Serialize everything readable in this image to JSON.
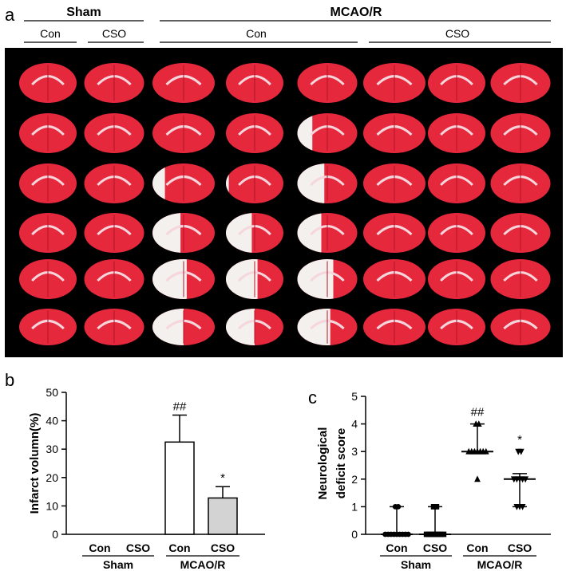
{
  "panel_labels": {
    "a": "a",
    "b": "b",
    "c": "c"
  },
  "top_header": {
    "group1": "Sham",
    "group2": "MCAO/R",
    "subgroups": [
      "Con",
      "CSO",
      "Con",
      "CSO"
    ]
  },
  "photo": {
    "rows": 6,
    "columns": 8,
    "background_color": "#000000",
    "tissue_red": "#e6283c",
    "tissue_white": "#f4f0ee",
    "infarct_extent": [
      [
        0.0,
        0.0,
        0.0,
        0.0,
        0.0,
        0.0,
        0.0,
        0.0
      ],
      [
        0.0,
        0.0,
        0.0,
        0.0,
        0.25,
        0.0,
        0.0,
        0.0
      ],
      [
        0.0,
        0.0,
        0.2,
        0.05,
        0.45,
        0.0,
        0.0,
        0.0
      ],
      [
        0.0,
        0.0,
        0.45,
        0.45,
        0.4,
        0.0,
        0.0,
        0.0
      ],
      [
        0.0,
        0.0,
        0.55,
        0.55,
        0.6,
        0.0,
        0.0,
        0.0
      ],
      [
        0.0,
        0.0,
        0.5,
        0.5,
        0.55,
        0.0,
        0.0,
        0.0
      ]
    ]
  },
  "chart_data": [
    {
      "type": "bar",
      "panel": "b",
      "ylabel": "Infarct volumn(%)",
      "ylim": [
        0,
        50
      ],
      "yticks": [
        0,
        10,
        20,
        30,
        40,
        50
      ],
      "categories": [
        "Con",
        "CSO",
        "Con",
        "CSO"
      ],
      "groups": [
        "Sham",
        "MCAO/R"
      ],
      "values": [
        0,
        0,
        32.5,
        12.8
      ],
      "errors": [
        0,
        0,
        9.5,
        4.0
      ],
      "bar_fill": [
        "#ffffff",
        "#ffffff",
        "#ffffff",
        "#d3d3d3"
      ],
      "annotations": [
        "",
        "",
        "##",
        "*"
      ]
    },
    {
      "type": "scatter",
      "panel": "c",
      "ylabel": "Neurological deficit score",
      "ylim": [
        0,
        5
      ],
      "yticks": [
        0,
        1,
        2,
        3,
        4,
        5
      ],
      "categories": [
        "Con",
        "CSO",
        "Con",
        "CSO"
      ],
      "groups": [
        "Sham",
        "MCAO/R"
      ],
      "markers": [
        "circle",
        "square",
        "triangle-up",
        "triangle-down"
      ],
      "points": [
        [
          0,
          0,
          0,
          0,
          0,
          0,
          0,
          0,
          0,
          1,
          1
        ],
        [
          0,
          0,
          0,
          0,
          0,
          0,
          0,
          1,
          1
        ],
        [
          2,
          3,
          3,
          3,
          3,
          3,
          3,
          3,
          4,
          4
        ],
        [
          1,
          1,
          1,
          2,
          2,
          2,
          2,
          2,
          3,
          3
        ]
      ],
      "median": [
        0,
        0,
        3,
        2
      ],
      "range": [
        [
          0,
          1
        ],
        [
          0,
          1
        ],
        [
          3,
          4
        ],
        [
          1,
          2.2
        ]
      ],
      "annotations": [
        "",
        "",
        "##",
        "*"
      ]
    }
  ]
}
